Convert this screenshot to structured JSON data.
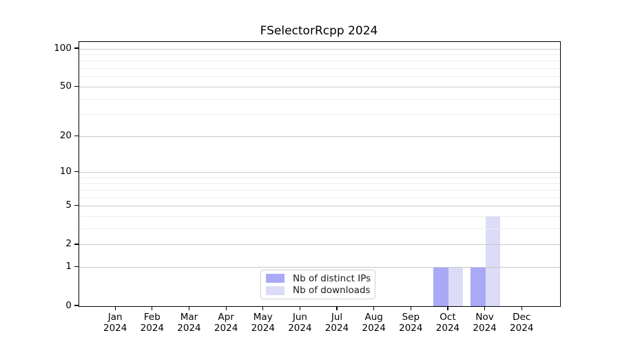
{
  "chart_data": {
    "type": "bar",
    "title": "FSelectorRcpp 2024",
    "x_year_label": "2024",
    "categories": [
      "Jan",
      "Feb",
      "Mar",
      "Apr",
      "May",
      "Jun",
      "Jul",
      "Aug",
      "Sep",
      "Oct",
      "Nov",
      "Dec"
    ],
    "series": [
      {
        "name": "Nb of distinct IPs",
        "color": "#a9a9f7",
        "values": [
          0,
          0,
          0,
          0,
          0,
          0,
          0,
          0,
          0,
          1,
          1,
          0
        ]
      },
      {
        "name": "Nb of downloads",
        "color": "#dcdcf8",
        "values": [
          0,
          0,
          0,
          0,
          0,
          0,
          0,
          0,
          0,
          1,
          4,
          0
        ]
      }
    ],
    "yscale": "log1p",
    "ylim": [
      0,
      113
    ],
    "yticks": [
      0,
      1,
      2,
      5,
      10,
      20,
      50,
      100
    ],
    "minor_yticks": [
      3,
      4,
      6,
      7,
      8,
      9,
      30,
      40,
      60,
      70,
      80,
      90
    ],
    "grid": "horizontal",
    "legend_position": "lower center",
    "colors": {
      "major_grid": "#c9c9c9",
      "minor_grid": "#ededed",
      "axis": "#000000",
      "text": "#000000",
      "background": "#ffffff"
    }
  }
}
